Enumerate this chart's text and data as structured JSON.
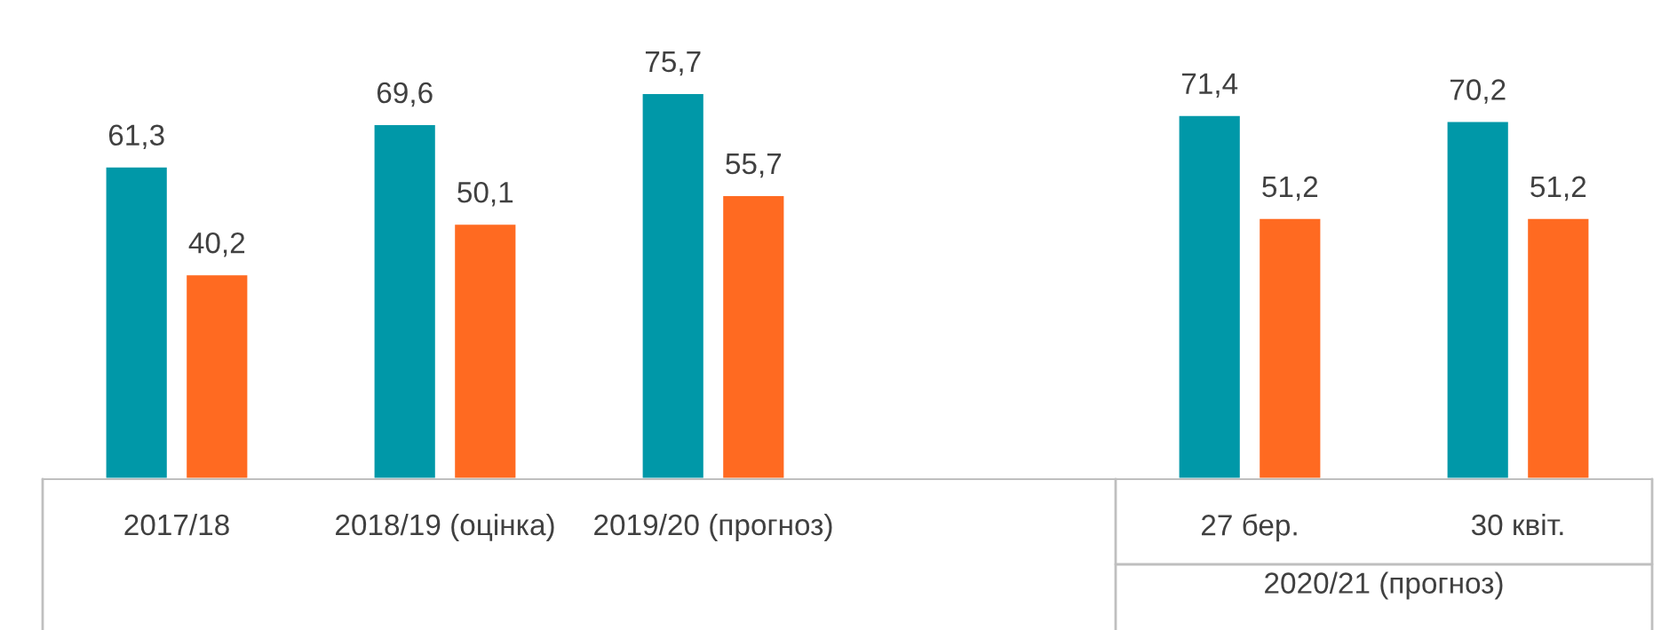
{
  "chart_data": {
    "type": "bar",
    "categories": [
      "2017/18",
      "2018/19 (оцінка)",
      "2019/20 (прогноз)",
      null,
      "27 бер.",
      "30 квіт."
    ],
    "series": [
      {
        "color": "#0098a8",
        "values": [
          61.3,
          69.6,
          75.7,
          null,
          71.4,
          70.2
        ],
        "value_labels": [
          "61,3",
          "69,6",
          "75,7",
          null,
          "71,4",
          "70,2"
        ]
      },
      {
        "color": "#ff6a21",
        "values": [
          40.2,
          50.1,
          55.7,
          null,
          51.2,
          51.2
        ],
        "value_labels": [
          "40,2",
          "50,1",
          "55,7",
          null,
          "51,2",
          "51,2"
        ]
      }
    ],
    "annotations": [
      "2020/21 (прогноз)"
    ],
    "tick_labels": "x"
  }
}
